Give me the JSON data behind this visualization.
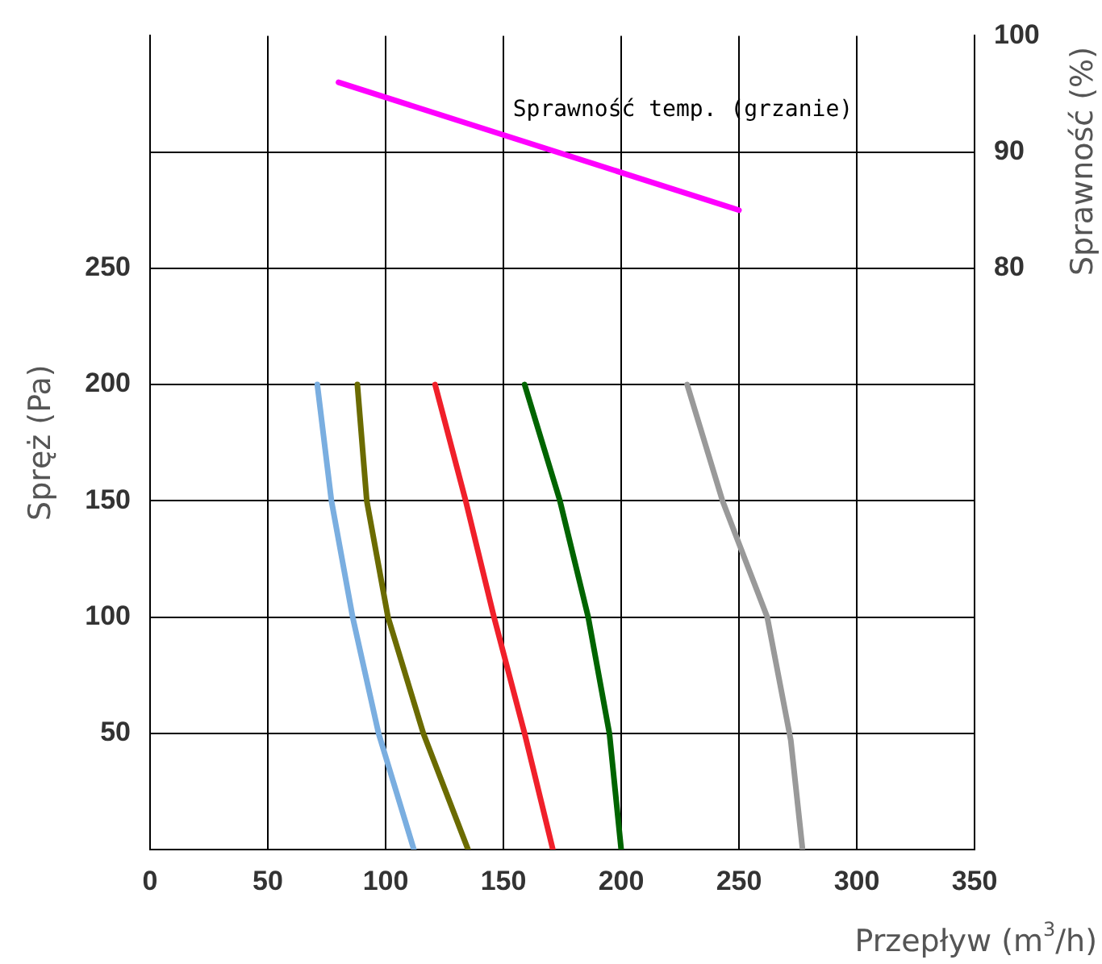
{
  "chart_data": {
    "type": "line",
    "xlabel": "Przepływ (m$^{3}$/h)",
    "ylabel": "Spręż (Pa)",
    "y2label": "Sprawność (%)",
    "xlim": [
      0,
      350
    ],
    "xticks": [
      0,
      50,
      100,
      150,
      200,
      250,
      300,
      350
    ],
    "ylim": [
      0,
      350
    ],
    "yticks": [
      50,
      100,
      150,
      200,
      250,
      {
        "value": 300,
        "label": null
      }
    ],
    "y2lim": [
      30,
      100
    ],
    "y2ticks": [
      80,
      90,
      100
    ],
    "grid": true,
    "legend": false,
    "marker": "none",
    "line_style": "solid",
    "annotations": [
      "Sprawność temp. (grzanie)"
    ],
    "series": [
      {
        "color": "#7aaee0",
        "x": [
          71,
          77,
          86,
          97,
          112
        ],
        "values": [
          200,
          150,
          100,
          50,
          0
        ]
      },
      {
        "color": "#6b6b00",
        "x": [
          88,
          92,
          101,
          116,
          135
        ],
        "values": [
          200,
          150,
          100,
          50,
          0
        ]
      },
      {
        "color": "#f0202a",
        "x": [
          121,
          134,
          146,
          159,
          171
        ],
        "values": [
          200,
          150,
          100,
          50,
          0
        ]
      },
      {
        "color": "#006400",
        "x": [
          159,
          174,
          186,
          195,
          200
        ],
        "values": [
          200,
          150,
          100,
          50,
          0
        ]
      },
      {
        "color": "#999999",
        "x": [
          228,
          243,
          262,
          272,
          277
        ],
        "values": [
          200,
          150,
          100,
          47,
          0
        ]
      },
      {
        "color": "#ff00ff",
        "axis": "y2",
        "x": [
          80,
          250
        ],
        "values": [
          96,
          85
        ]
      }
    ]
  }
}
